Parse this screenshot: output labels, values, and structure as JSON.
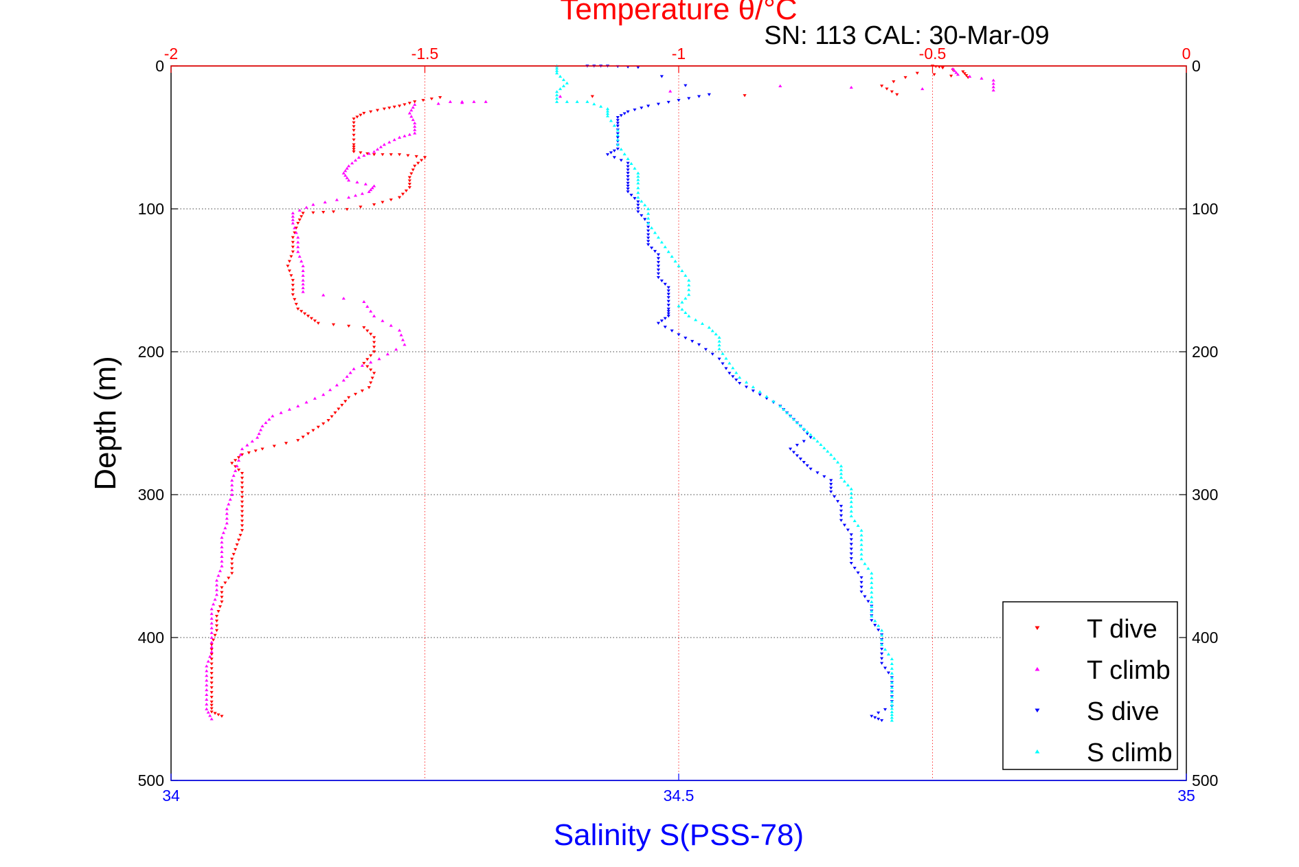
{
  "chart_data": {
    "type": "scatter",
    "title": "Temperature θ/°C",
    "subtitle": "SN: 113  CAL: 30-Mar-09",
    "xlabel": "Salinity S(PSS-78)",
    "ylabel": "Depth (m)",
    "x_bottom": {
      "range": [
        34,
        35
      ],
      "ticks": [
        "34",
        "34.5",
        "35"
      ],
      "color": "#0000ff"
    },
    "x_top": {
      "range": [
        -2,
        0
      ],
      "ticks": [
        "-2",
        "-1.5",
        "-1",
        "-0.5",
        "0"
      ],
      "color": "#ff0000"
    },
    "y": {
      "range": [
        0,
        500
      ],
      "reversed": true,
      "ticks": [
        "0",
        "100",
        "200",
        "300",
        "400",
        "500"
      ]
    },
    "grid": {
      "horizontal": true,
      "vertical_top_axis": true
    },
    "legend_position": "bottom-right",
    "series": [
      {
        "name": "T dive",
        "axis": "temperature",
        "color": "#ff0000",
        "marker": "triangle-down",
        "points": [
          [
            -0.48,
            1
          ],
          [
            -0.5,
            0
          ],
          [
            -0.44,
            4
          ],
          [
            -0.43,
            8
          ],
          [
            -0.53,
            5
          ],
          [
            -0.6,
            14
          ],
          [
            -0.57,
            20
          ],
          [
            -1.47,
            22
          ],
          [
            -1.52,
            25
          ],
          [
            -1.55,
            28
          ],
          [
            -1.58,
            30
          ],
          [
            -1.62,
            33
          ],
          [
            -1.64,
            37
          ],
          [
            -1.64,
            45
          ],
          [
            -1.64,
            55
          ],
          [
            -1.64,
            60
          ],
          [
            -1.6,
            62
          ],
          [
            -1.55,
            62
          ],
          [
            -1.5,
            64
          ],
          [
            -1.52,
            70
          ],
          [
            -1.53,
            78
          ],
          [
            -1.53,
            85
          ],
          [
            -1.55,
            92
          ],
          [
            -1.6,
            97
          ],
          [
            -1.68,
            102
          ],
          [
            -1.74,
            103
          ],
          [
            -1.75,
            110
          ],
          [
            -1.76,
            120
          ],
          [
            -1.76,
            130
          ],
          [
            -1.77,
            140
          ],
          [
            -1.76,
            150
          ],
          [
            -1.76,
            160
          ],
          [
            -1.75,
            170
          ],
          [
            -1.73,
            175
          ],
          [
            -1.71,
            180
          ],
          [
            -1.62,
            183
          ],
          [
            -1.6,
            190
          ],
          [
            -1.6,
            200
          ],
          [
            -1.62,
            208
          ],
          [
            -1.6,
            215
          ],
          [
            -1.61,
            225
          ],
          [
            -1.65,
            232
          ],
          [
            -1.67,
            240
          ],
          [
            -1.69,
            248
          ],
          [
            -1.72,
            255
          ],
          [
            -1.75,
            262
          ],
          [
            -1.82,
            268
          ],
          [
            -1.86,
            272
          ],
          [
            -1.88,
            278
          ],
          [
            -1.86,
            285
          ],
          [
            -1.86,
            295
          ],
          [
            -1.86,
            305
          ],
          [
            -1.86,
            315
          ],
          [
            -1.86,
            325
          ],
          [
            -1.87,
            335
          ],
          [
            -1.88,
            345
          ],
          [
            -1.88,
            355
          ],
          [
            -1.9,
            365
          ],
          [
            -1.9,
            375
          ],
          [
            -1.91,
            385
          ],
          [
            -1.91,
            395
          ],
          [
            -1.92,
            405
          ],
          [
            -1.92,
            415
          ],
          [
            -1.92,
            425
          ],
          [
            -1.92,
            435
          ],
          [
            -1.92,
            445
          ],
          [
            -1.92,
            452
          ],
          [
            -1.9,
            455
          ]
        ]
      },
      {
        "name": "T climb",
        "axis": "temperature",
        "color": "#ff00ff",
        "marker": "triangle-up",
        "points": [
          [
            -0.46,
            2
          ],
          [
            -0.45,
            6
          ],
          [
            -0.38,
            10
          ],
          [
            -0.38,
            17
          ],
          [
            -0.8,
            14
          ],
          [
            -1.45,
            25
          ],
          [
            -1.38,
            25
          ],
          [
            -1.52,
            27
          ],
          [
            -1.53,
            33
          ],
          [
            -1.52,
            40
          ],
          [
            -1.52,
            47
          ],
          [
            -1.55,
            50
          ],
          [
            -1.58,
            55
          ],
          [
            -1.6,
            60
          ],
          [
            -1.63,
            64
          ],
          [
            -1.65,
            70
          ],
          [
            -1.66,
            75
          ],
          [
            -1.65,
            80
          ],
          [
            -1.6,
            84
          ],
          [
            -1.61,
            88
          ],
          [
            -1.65,
            92
          ],
          [
            -1.72,
            97
          ],
          [
            -1.76,
            103
          ],
          [
            -1.76,
            110
          ],
          [
            -1.75,
            120
          ],
          [
            -1.75,
            130
          ],
          [
            -1.74,
            140
          ],
          [
            -1.74,
            150
          ],
          [
            -1.74,
            158
          ],
          [
            -1.62,
            165
          ],
          [
            -1.6,
            175
          ],
          [
            -1.55,
            185
          ],
          [
            -1.54,
            195
          ],
          [
            -1.59,
            205
          ],
          [
            -1.64,
            212
          ],
          [
            -1.66,
            220
          ],
          [
            -1.7,
            230
          ],
          [
            -1.75,
            238
          ],
          [
            -1.8,
            245
          ],
          [
            -1.82,
            252
          ],
          [
            -1.83,
            260
          ],
          [
            -1.86,
            268
          ],
          [
            -1.87,
            280
          ],
          [
            -1.88,
            290
          ],
          [
            -1.88,
            300
          ],
          [
            -1.89,
            310
          ],
          [
            -1.89,
            320
          ],
          [
            -1.9,
            330
          ],
          [
            -1.9,
            340
          ],
          [
            -1.9,
            350
          ],
          [
            -1.91,
            360
          ],
          [
            -1.91,
            370
          ],
          [
            -1.92,
            380
          ],
          [
            -1.92,
            390
          ],
          [
            -1.92,
            400
          ],
          [
            -1.92,
            410
          ],
          [
            -1.93,
            420
          ],
          [
            -1.93,
            430
          ],
          [
            -1.93,
            440
          ],
          [
            -1.93,
            450
          ],
          [
            -1.92,
            457
          ]
        ]
      },
      {
        "name": "S dive",
        "axis": "salinity",
        "color": "#0000ff",
        "marker": "triangle-down",
        "points": [
          [
            34.41,
            0
          ],
          [
            34.43,
            0
          ],
          [
            34.46,
            1
          ],
          [
            34.53,
            20
          ],
          [
            34.5,
            24
          ],
          [
            34.47,
            28
          ],
          [
            34.45,
            32
          ],
          [
            34.44,
            36
          ],
          [
            34.44,
            42
          ],
          [
            34.44,
            50
          ],
          [
            34.44,
            58
          ],
          [
            34.43,
            62
          ],
          [
            34.45,
            68
          ],
          [
            34.45,
            75
          ],
          [
            34.45,
            82
          ],
          [
            34.45,
            88
          ],
          [
            34.46,
            95
          ],
          [
            34.46,
            102
          ],
          [
            34.47,
            110
          ],
          [
            34.47,
            118
          ],
          [
            34.47,
            125
          ],
          [
            34.48,
            132
          ],
          [
            34.48,
            140
          ],
          [
            34.48,
            148
          ],
          [
            34.49,
            155
          ],
          [
            34.49,
            162
          ],
          [
            34.49,
            170
          ],
          [
            34.49,
            175
          ],
          [
            34.48,
            180
          ],
          [
            34.5,
            188
          ],
          [
            34.52,
            195
          ],
          [
            34.54,
            205
          ],
          [
            34.55,
            215
          ],
          [
            34.56,
            222
          ],
          [
            34.58,
            230
          ],
          [
            34.6,
            238
          ],
          [
            34.61,
            245
          ],
          [
            34.62,
            252
          ],
          [
            34.63,
            260
          ],
          [
            34.61,
            268
          ],
          [
            34.62,
            275
          ],
          [
            34.63,
            282
          ],
          [
            34.65,
            290
          ],
          [
            34.65,
            298
          ],
          [
            34.66,
            308
          ],
          [
            34.66,
            318
          ],
          [
            34.67,
            328
          ],
          [
            34.67,
            338
          ],
          [
            34.67,
            348
          ],
          [
            34.68,
            358
          ],
          [
            34.68,
            368
          ],
          [
            34.69,
            378
          ],
          [
            34.69,
            388
          ],
          [
            34.7,
            398
          ],
          [
            34.7,
            408
          ],
          [
            34.7,
            418
          ],
          [
            34.71,
            428
          ],
          [
            34.71,
            438
          ],
          [
            34.71,
            448
          ],
          [
            34.69,
            455
          ],
          [
            34.7,
            458
          ]
        ]
      },
      {
        "name": "S climb",
        "axis": "salinity",
        "color": "#00ffff",
        "marker": "triangle-up",
        "points": [
          [
            34.38,
            0
          ],
          [
            34.38,
            5
          ],
          [
            34.39,
            12
          ],
          [
            34.38,
            18
          ],
          [
            34.38,
            25
          ],
          [
            34.41,
            25
          ],
          [
            34.43,
            30
          ],
          [
            34.43,
            35
          ],
          [
            34.44,
            45
          ],
          [
            34.44,
            55
          ],
          [
            34.45,
            65
          ],
          [
            34.46,
            75
          ],
          [
            34.46,
            82
          ],
          [
            34.46,
            92
          ],
          [
            34.47,
            100
          ],
          [
            34.47,
            110
          ],
          [
            34.48,
            120
          ],
          [
            34.49,
            130
          ],
          [
            34.5,
            140
          ],
          [
            34.51,
            150
          ],
          [
            34.51,
            160
          ],
          [
            34.5,
            168
          ],
          [
            34.51,
            175
          ],
          [
            34.53,
            183
          ],
          [
            34.54,
            190
          ],
          [
            34.54,
            198
          ],
          [
            34.55,
            208
          ],
          [
            34.56,
            218
          ],
          [
            34.58,
            228
          ],
          [
            34.6,
            238
          ],
          [
            34.61,
            245
          ],
          [
            34.62,
            252
          ],
          [
            34.63,
            258
          ],
          [
            34.64,
            265
          ],
          [
            34.65,
            272
          ],
          [
            34.66,
            280
          ],
          [
            34.66,
            288
          ],
          [
            34.67,
            296
          ],
          [
            34.67,
            305
          ],
          [
            34.67,
            315
          ],
          [
            34.68,
            325
          ],
          [
            34.68,
            335
          ],
          [
            34.68,
            345
          ],
          [
            34.69,
            355
          ],
          [
            34.69,
            365
          ],
          [
            34.69,
            375
          ],
          [
            34.69,
            385
          ],
          [
            34.7,
            395
          ],
          [
            34.7,
            405
          ],
          [
            34.71,
            415
          ],
          [
            34.71,
            425
          ],
          [
            34.71,
            435
          ],
          [
            34.71,
            445
          ],
          [
            34.71,
            452
          ],
          [
            34.71,
            458
          ]
        ]
      }
    ]
  }
}
